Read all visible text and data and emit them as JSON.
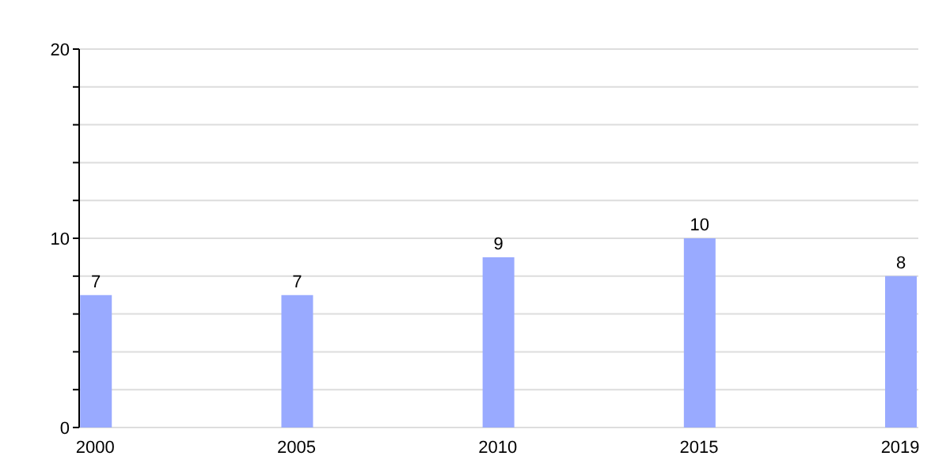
{
  "chart_data": {
    "type": "bar",
    "categories": [
      "2000",
      "2005",
      "2010",
      "2015",
      "2019"
    ],
    "values": [
      7,
      7,
      9,
      10,
      8
    ],
    "color": "#99aaff",
    "data_labels": true,
    "ylim": [
      0,
      20
    ],
    "yticks": [
      0,
      {
        "value": 2,
        "label": null
      },
      {
        "value": 4,
        "label": null
      },
      {
        "value": 6,
        "label": null
      },
      {
        "value": 8,
        "label": null
      },
      10,
      {
        "value": 12,
        "label": null
      },
      {
        "value": 14,
        "label": null
      },
      {
        "value": 16,
        "label": null
      },
      {
        "value": 18,
        "label": null
      },
      20
    ],
    "grid": "y"
  }
}
